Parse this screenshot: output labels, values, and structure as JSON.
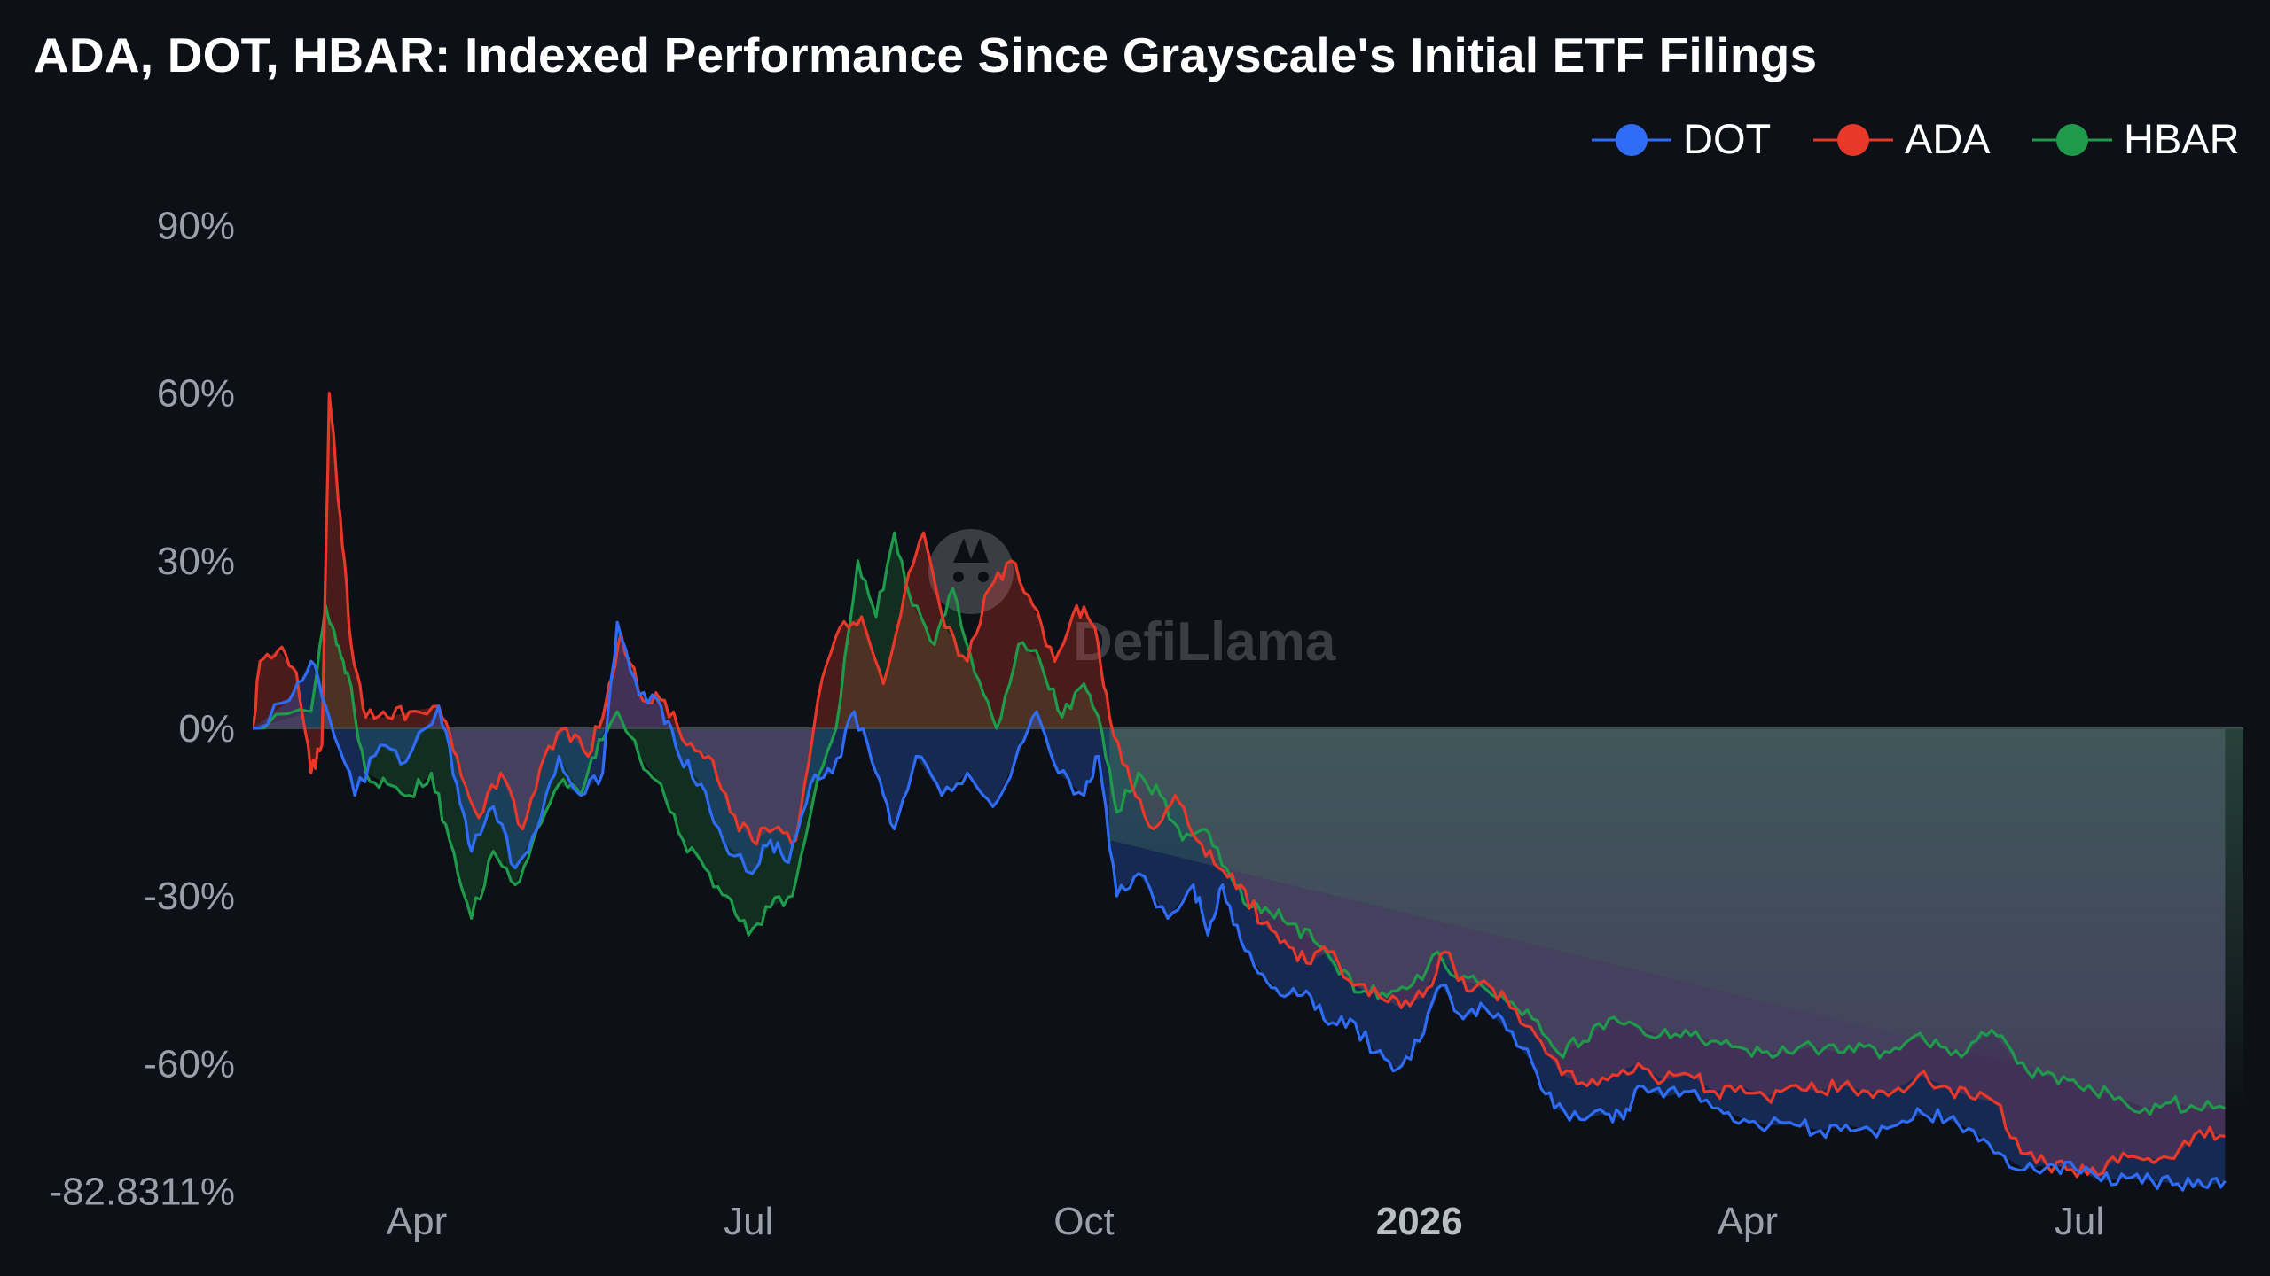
{
  "chart_data": {
    "type": "line",
    "title": "ADA, DOT, HBAR: Indexed Performance Since Grayscale's Initial ETF Filings",
    "xlabel": "",
    "ylabel": "",
    "y_unit": "%",
    "ylim": [
      -82.8311,
      105
    ],
    "y_ticks": [
      "90%",
      "60%",
      "30%",
      "0%",
      "-30%",
      "-60%",
      "-82.8311%"
    ],
    "y_tick_values": [
      90,
      60,
      30,
      0,
      -30,
      -60,
      -82.8311
    ],
    "x_ticks": [
      {
        "label": "Apr",
        "date": "2025-04-01",
        "bold": false
      },
      {
        "label": "Jul",
        "date": "2025-07-01",
        "bold": false
      },
      {
        "label": "Oct",
        "date": "2025-10-01",
        "bold": false
      },
      {
        "label": "2026",
        "date": "2026-01-01",
        "bold": true
      },
      {
        "label": "Apr",
        "date": "2026-04-01",
        "bold": false
      },
      {
        "label": "Jul",
        "date": "2026-07-01",
        "bold": false
      }
    ],
    "xlim": [
      "2025-02-15",
      "2026-08-15"
    ],
    "grid": false,
    "legend": "top-right",
    "series": [
      {
        "name": "DOT",
        "color": "#2f6cf6",
        "points": [
          [
            "2025-02-15",
            0
          ],
          [
            "2025-02-25",
            5
          ],
          [
            "2025-03-03",
            12
          ],
          [
            "2025-03-08",
            2
          ],
          [
            "2025-03-15",
            -12
          ],
          [
            "2025-03-22",
            -3
          ],
          [
            "2025-03-29",
            -6
          ],
          [
            "2025-04-07",
            4
          ],
          [
            "2025-04-12",
            -10
          ],
          [
            "2025-04-16",
            -22
          ],
          [
            "2025-04-22",
            -14
          ],
          [
            "2025-04-28",
            -25
          ],
          [
            "2025-05-04",
            -18
          ],
          [
            "2025-05-10",
            -5
          ],
          [
            "2025-05-16",
            -12
          ],
          [
            "2025-05-22",
            -8
          ],
          [
            "2025-05-26",
            19
          ],
          [
            "2025-06-01",
            6
          ],
          [
            "2025-06-07",
            4
          ],
          [
            "2025-06-12",
            -5
          ],
          [
            "2025-06-18",
            -10
          ],
          [
            "2025-06-24",
            -20
          ],
          [
            "2025-07-02",
            -26
          ],
          [
            "2025-07-07",
            -20
          ],
          [
            "2025-07-12",
            -24
          ],
          [
            "2025-07-18",
            -10
          ],
          [
            "2025-07-24",
            -8
          ],
          [
            "2025-07-30",
            3
          ],
          [
            "2025-08-05",
            -8
          ],
          [
            "2025-08-10",
            -18
          ],
          [
            "2025-08-16",
            -5
          ],
          [
            "2025-08-23",
            -12
          ],
          [
            "2025-08-30",
            -8
          ],
          [
            "2025-09-06",
            -14
          ],
          [
            "2025-09-12",
            -6
          ],
          [
            "2025-09-18",
            3
          ],
          [
            "2025-09-24",
            -8
          ],
          [
            "2025-10-01",
            -12
          ],
          [
            "2025-10-05",
            -5
          ],
          [
            "2025-10-10",
            -30
          ],
          [
            "2025-10-16",
            -26
          ],
          [
            "2025-10-24",
            -34
          ],
          [
            "2025-10-31",
            -28
          ],
          [
            "2025-11-04",
            -37
          ],
          [
            "2025-11-08",
            -28
          ],
          [
            "2025-11-13",
            -38
          ],
          [
            "2025-11-19",
            -44
          ],
          [
            "2025-11-25",
            -48
          ],
          [
            "2025-12-01",
            -47
          ],
          [
            "2025-12-07",
            -53
          ],
          [
            "2025-12-13",
            -52
          ],
          [
            "2025-12-20",
            -58
          ],
          [
            "2025-12-26",
            -61
          ],
          [
            "2026-01-01",
            -56
          ],
          [
            "2026-01-07",
            -46
          ],
          [
            "2026-01-13",
            -52
          ],
          [
            "2026-01-19",
            -50
          ],
          [
            "2026-01-25",
            -54
          ],
          [
            "2026-02-01",
            -60
          ],
          [
            "2026-02-07",
            -68
          ],
          [
            "2026-02-14",
            -70
          ],
          [
            "2026-02-21",
            -69
          ],
          [
            "2026-02-26",
            -70
          ],
          [
            "2026-03-02",
            -64
          ],
          [
            "2026-03-09",
            -66
          ],
          [
            "2026-03-16",
            -65
          ],
          [
            "2026-03-24",
            -68
          ],
          [
            "2026-03-31",
            -70
          ],
          [
            "2026-04-07",
            -71
          ],
          [
            "2026-04-14",
            -71
          ],
          [
            "2026-04-21",
            -72
          ],
          [
            "2026-04-28",
            -71
          ],
          [
            "2026-05-05",
            -72
          ],
          [
            "2026-05-12",
            -71
          ],
          [
            "2026-05-19",
            -69
          ],
          [
            "2026-05-26",
            -70
          ],
          [
            "2026-06-02",
            -72
          ],
          [
            "2026-06-09",
            -76
          ],
          [
            "2026-06-16",
            -79
          ],
          [
            "2026-06-23",
            -78
          ],
          [
            "2026-06-30",
            -79
          ],
          [
            "2026-07-07",
            -81
          ],
          [
            "2026-07-14",
            -80.5
          ],
          [
            "2026-07-21",
            -81
          ],
          [
            "2026-07-28",
            -81.5
          ],
          [
            "2026-08-04",
            -82
          ],
          [
            "2026-08-10",
            -81
          ]
        ]
      },
      {
        "name": "ADA",
        "color": "#e8382a",
        "points": [
          [
            "2025-02-15",
            0
          ],
          [
            "2025-02-17",
            12
          ],
          [
            "2025-02-22",
            14
          ],
          [
            "2025-02-27",
            10
          ],
          [
            "2025-03-03",
            -8
          ],
          [
            "2025-03-06",
            -3
          ],
          [
            "2025-03-08",
            60
          ],
          [
            "2025-03-11",
            38
          ],
          [
            "2025-03-14",
            15
          ],
          [
            "2025-03-18",
            2
          ],
          [
            "2025-03-24",
            2
          ],
          [
            "2025-03-30",
            3
          ],
          [
            "2025-04-07",
            4
          ],
          [
            "2025-04-12",
            -5
          ],
          [
            "2025-04-18",
            -16
          ],
          [
            "2025-04-24",
            -8
          ],
          [
            "2025-04-30",
            -18
          ],
          [
            "2025-05-06",
            -5
          ],
          [
            "2025-05-12",
            0
          ],
          [
            "2025-05-18",
            -5
          ],
          [
            "2025-05-23",
            5
          ],
          [
            "2025-05-27",
            17
          ],
          [
            "2025-06-02",
            5
          ],
          [
            "2025-06-08",
            5
          ],
          [
            "2025-06-14",
            -3
          ],
          [
            "2025-06-20",
            -5
          ],
          [
            "2025-06-26",
            -15
          ],
          [
            "2025-07-02",
            -20
          ],
          [
            "2025-07-08",
            -18
          ],
          [
            "2025-07-14",
            -20
          ],
          [
            "2025-07-20",
            5
          ],
          [
            "2025-07-26",
            18
          ],
          [
            "2025-08-01",
            20
          ],
          [
            "2025-08-07",
            8
          ],
          [
            "2025-08-13",
            25
          ],
          [
            "2025-08-18",
            35
          ],
          [
            "2025-08-24",
            18
          ],
          [
            "2025-08-30",
            12
          ],
          [
            "2025-09-05",
            25
          ],
          [
            "2025-09-11",
            30
          ],
          [
            "2025-09-17",
            22
          ],
          [
            "2025-09-23",
            12
          ],
          [
            "2025-09-29",
            22
          ],
          [
            "2025-10-04",
            18
          ],
          [
            "2025-10-08",
            2
          ],
          [
            "2025-10-14",
            -10
          ],
          [
            "2025-10-20",
            -18
          ],
          [
            "2025-10-26",
            -12
          ],
          [
            "2025-11-01",
            -20
          ],
          [
            "2025-11-07",
            -25
          ],
          [
            "2025-11-13",
            -28
          ],
          [
            "2025-11-19",
            -35
          ],
          [
            "2025-11-25",
            -38
          ],
          [
            "2025-12-01",
            -42
          ],
          [
            "2025-12-07",
            -40
          ],
          [
            "2025-12-14",
            -46
          ],
          [
            "2025-12-21",
            -48
          ],
          [
            "2025-12-27",
            -50
          ],
          [
            "2026-01-02",
            -48
          ],
          [
            "2026-01-08",
            -40
          ],
          [
            "2026-01-14",
            -47
          ],
          [
            "2026-01-20",
            -46
          ],
          [
            "2026-01-26",
            -50
          ],
          [
            "2026-02-02",
            -55
          ],
          [
            "2026-02-09",
            -62
          ],
          [
            "2026-02-16",
            -64
          ],
          [
            "2026-02-23",
            -62
          ],
          [
            "2026-03-02",
            -60
          ],
          [
            "2026-03-09",
            -63
          ],
          [
            "2026-03-16",
            -62
          ],
          [
            "2026-03-23",
            -65
          ],
          [
            "2026-03-30",
            -64
          ],
          [
            "2026-04-06",
            -66
          ],
          [
            "2026-04-13",
            -64
          ],
          [
            "2026-04-20",
            -65
          ],
          [
            "2026-04-27",
            -64
          ],
          [
            "2026-05-04",
            -65
          ],
          [
            "2026-05-11",
            -65
          ],
          [
            "2026-05-18",
            -62
          ],
          [
            "2026-05-25",
            -64
          ],
          [
            "2026-06-01",
            -66
          ],
          [
            "2026-06-08",
            -67
          ],
          [
            "2026-06-15",
            -76
          ],
          [
            "2026-06-22",
            -78
          ],
          [
            "2026-06-29",
            -79
          ],
          [
            "2026-07-06",
            -80
          ],
          [
            "2026-07-13",
            -76
          ],
          [
            "2026-07-20",
            -77
          ],
          [
            "2026-07-27",
            -77
          ],
          [
            "2026-08-03",
            -72
          ],
          [
            "2026-08-10",
            -73
          ]
        ]
      },
      {
        "name": "HBAR",
        "color": "#1f9a4b",
        "points": [
          [
            "2025-02-15",
            0
          ],
          [
            "2025-03-03",
            3
          ],
          [
            "2025-03-07",
            22
          ],
          [
            "2025-03-10",
            15
          ],
          [
            "2025-03-13",
            10
          ],
          [
            "2025-03-18",
            -8
          ],
          [
            "2025-03-24",
            -10
          ],
          [
            "2025-03-30",
            -12
          ],
          [
            "2025-04-05",
            -8
          ],
          [
            "2025-04-10",
            -20
          ],
          [
            "2025-04-16",
            -34
          ],
          [
            "2025-04-22",
            -22
          ],
          [
            "2025-04-28",
            -28
          ],
          [
            "2025-05-04",
            -18
          ],
          [
            "2025-05-10",
            -10
          ],
          [
            "2025-05-16",
            -12
          ],
          [
            "2025-05-21",
            -2
          ],
          [
            "2025-05-26",
            3
          ],
          [
            "2025-06-01",
            -5
          ],
          [
            "2025-06-07",
            -10
          ],
          [
            "2025-06-13",
            -20
          ],
          [
            "2025-06-19",
            -25
          ],
          [
            "2025-06-25",
            -30
          ],
          [
            "2025-07-01",
            -37
          ],
          [
            "2025-07-07",
            -32
          ],
          [
            "2025-07-13",
            -30
          ],
          [
            "2025-07-19",
            -12
          ],
          [
            "2025-07-25",
            0
          ],
          [
            "2025-07-31",
            30
          ],
          [
            "2025-08-05",
            20
          ],
          [
            "2025-08-10",
            35
          ],
          [
            "2025-08-15",
            22
          ],
          [
            "2025-08-21",
            15
          ],
          [
            "2025-08-26",
            25
          ],
          [
            "2025-09-01",
            10
          ],
          [
            "2025-09-07",
            0
          ],
          [
            "2025-09-13",
            15
          ],
          [
            "2025-09-19",
            12
          ],
          [
            "2025-09-25",
            2
          ],
          [
            "2025-10-01",
            8
          ],
          [
            "2025-10-05",
            2
          ],
          [
            "2025-10-10",
            -15
          ],
          [
            "2025-10-16",
            -8
          ],
          [
            "2025-10-22",
            -12
          ],
          [
            "2025-10-28",
            -20
          ],
          [
            "2025-11-03",
            -18
          ],
          [
            "2025-11-09",
            -25
          ],
          [
            "2025-11-15",
            -32
          ],
          [
            "2025-11-21",
            -33
          ],
          [
            "2025-11-27",
            -35
          ],
          [
            "2025-12-03",
            -38
          ],
          [
            "2025-12-10",
            -44
          ],
          [
            "2025-12-17",
            -47
          ],
          [
            "2025-12-23",
            -48
          ],
          [
            "2025-12-30",
            -46
          ],
          [
            "2026-01-06",
            -40
          ],
          [
            "2026-01-12",
            -45
          ],
          [
            "2026-01-18",
            -46
          ],
          [
            "2026-01-25",
            -49
          ],
          [
            "2026-02-01",
            -52
          ],
          [
            "2026-02-08",
            -58
          ],
          [
            "2026-02-15",
            -56
          ],
          [
            "2026-02-22",
            -52
          ],
          [
            "2026-03-01",
            -53
          ],
          [
            "2026-03-08",
            -55
          ],
          [
            "2026-03-15",
            -54
          ],
          [
            "2026-03-22",
            -56
          ],
          [
            "2026-03-29",
            -57
          ],
          [
            "2026-04-05",
            -58
          ],
          [
            "2026-04-12",
            -58
          ],
          [
            "2026-04-19",
            -57
          ],
          [
            "2026-04-26",
            -58
          ],
          [
            "2026-05-03",
            -57
          ],
          [
            "2026-05-10",
            -58
          ],
          [
            "2026-05-17",
            -55
          ],
          [
            "2026-05-24",
            -57
          ],
          [
            "2026-05-31",
            -58
          ],
          [
            "2026-06-07",
            -54
          ],
          [
            "2026-06-14",
            -60
          ],
          [
            "2026-06-21",
            -62
          ],
          [
            "2026-06-28",
            -63
          ],
          [
            "2026-07-05",
            -65
          ],
          [
            "2026-07-12",
            -66
          ],
          [
            "2026-07-19",
            -68
          ],
          [
            "2026-07-26",
            -67
          ],
          [
            "2026-08-02",
            -68
          ],
          [
            "2026-08-10",
            -68
          ]
        ]
      }
    ]
  },
  "watermark": {
    "text": "DefiLlama",
    "icon": "llama-logo-icon"
  },
  "colors": {
    "background": "#0d1016",
    "axis_text": "#9a9fa8",
    "zero_line": "#2e3a40"
  }
}
